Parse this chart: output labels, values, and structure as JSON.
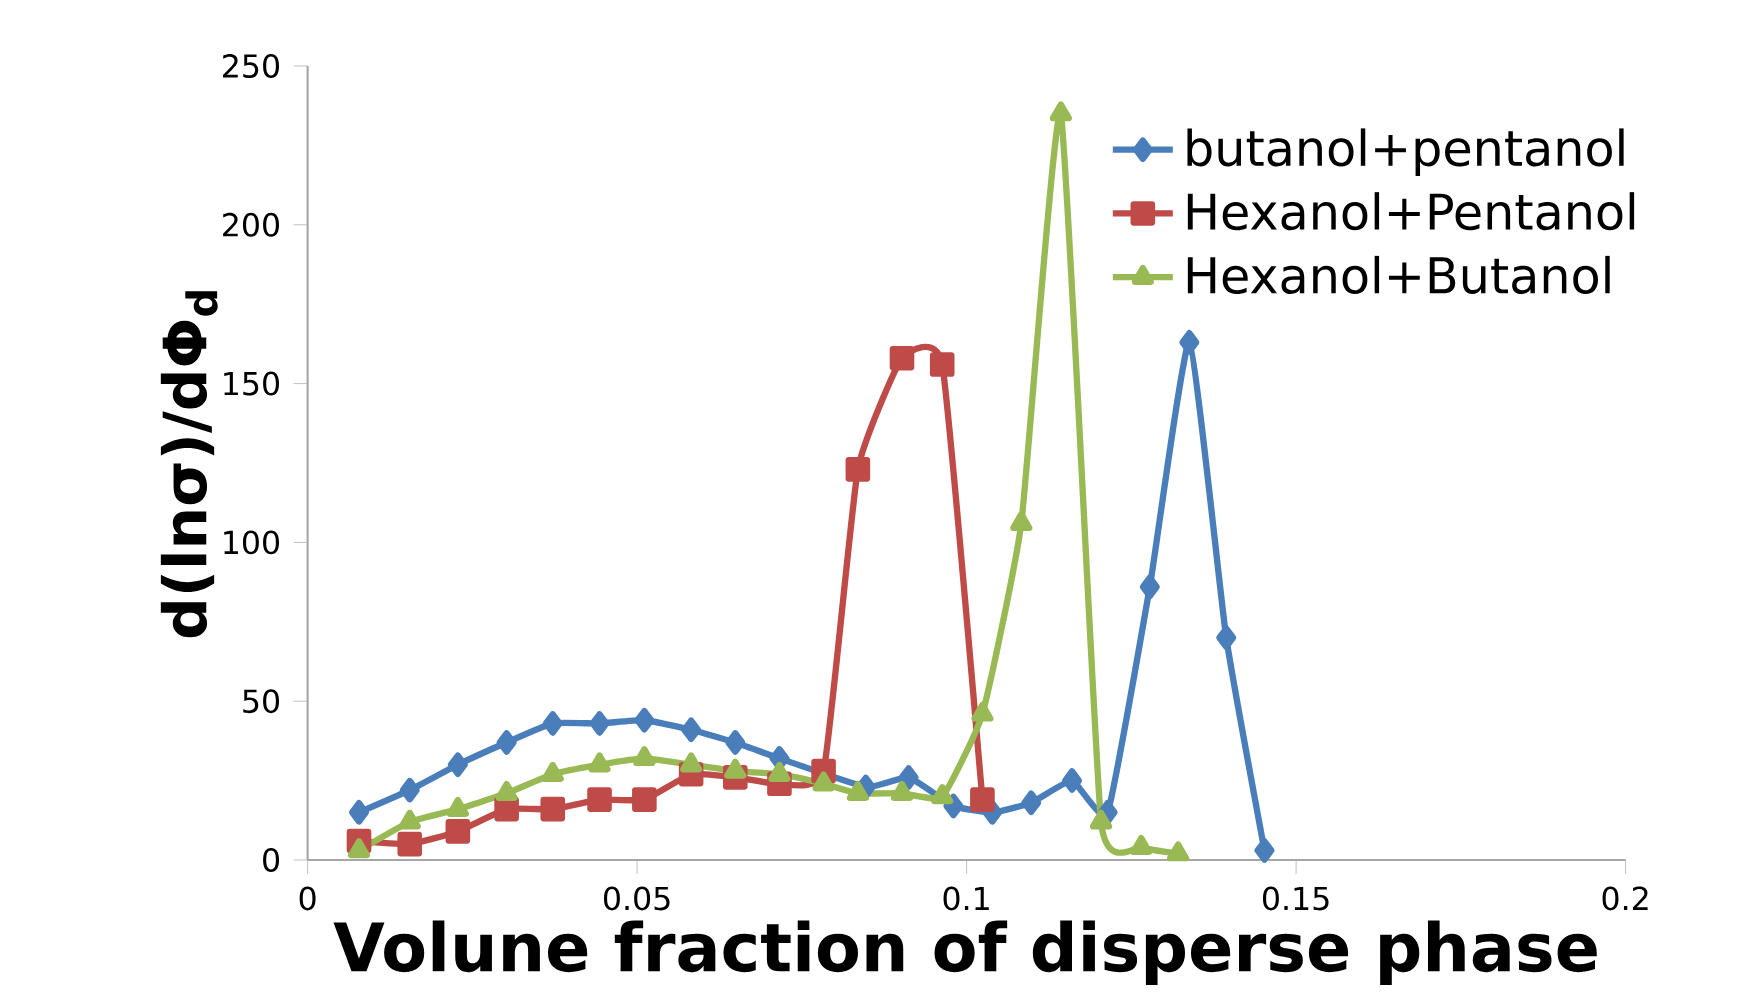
{
  "chart_data": {
    "type": "line",
    "xlabel": "Volune fraction of disperse phase",
    "ylabel": "**d(lnσ)/dΦ$_{d}$**",
    "xlim": [
      0,
      0.2
    ],
    "xticks": [
      0,
      0.05,
      0.1,
      0.15,
      0.2
    ],
    "ylim": [
      0,
      250
    ],
    "yticks": [
      0,
      50,
      100,
      150,
      200,
      250
    ],
    "grid": false,
    "legend": "top right",
    "line_style": "solid",
    "series": [
      {
        "name": "butanol+pentanol",
        "color": "#4a7ebb",
        "marker": "diamond",
        "x": [
          0.0078,
          0.0155,
          0.0228,
          0.0302,
          0.0372,
          0.0443,
          0.0511,
          0.0582,
          0.0649,
          0.0716,
          0.0847,
          0.0912,
          0.098,
          0.1039,
          0.1098,
          0.116,
          0.1214,
          0.1278,
          0.1338,
          0.1394,
          0.1452
        ],
        "values": [
          15,
          22,
          30,
          37,
          43,
          43,
          44,
          41,
          37,
          32,
          23,
          26,
          17,
          15,
          18,
          25,
          15,
          86,
          163,
          70,
          3
        ]
      },
      {
        "name": "Hexanol+Pentanol",
        "color": "#be4b48",
        "marker": "square",
        "x": [
          0.0078,
          0.0155,
          0.0228,
          0.0302,
          0.0372,
          0.0443,
          0.0511,
          0.0582,
          0.0649,
          0.0716,
          0.0783,
          0.0835,
          0.0902,
          0.0963,
          0.1024
        ],
        "values": [
          6,
          5,
          9,
          16,
          16,
          19,
          19,
          27,
          26,
          24,
          28,
          123,
          158,
          156,
          19
        ]
      },
      {
        "name": "Hexanol+Butanol",
        "color": "#98b954",
        "marker": "triangle",
        "x": [
          0.0078,
          0.0155,
          0.0228,
          0.0302,
          0.0372,
          0.0443,
          0.0511,
          0.0582,
          0.0649,
          0.0716,
          0.0783,
          0.0835,
          0.0902,
          0.0963,
          0.1024,
          0.1083,
          0.1143,
          0.1204,
          0.1265,
          0.1321
        ],
        "values": [
          3,
          12,
          16,
          21,
          27,
          30,
          32,
          30,
          28,
          27,
          24,
          21,
          21,
          20,
          46,
          106,
          235,
          12,
          4,
          2
        ]
      }
    ]
  }
}
